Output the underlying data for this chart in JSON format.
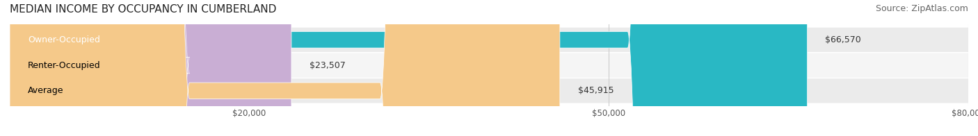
{
  "title": "MEDIAN INCOME BY OCCUPANCY IN CUMBERLAND",
  "source": "Source: ZipAtlas.com",
  "categories": [
    "Owner-Occupied",
    "Renter-Occupied",
    "Average"
  ],
  "values": [
    66570,
    23507,
    45915
  ],
  "labels": [
    "$66,570",
    "$23,507",
    "$45,915"
  ],
  "bar_colors": [
    "#29b8c4",
    "#c9aed4",
    "#f5c98a"
  ],
  "bar_edge_colors": [
    "#29b8c4",
    "#c9aed4",
    "#f5c98a"
  ],
  "bg_colors": [
    "#e8e8e8",
    "#f0f0f0",
    "#e8e8e8"
  ],
  "xlim": [
    0,
    80000
  ],
  "xticks": [
    20000,
    50000,
    80000
  ],
  "xticklabels": [
    "$20,000",
    "$50,000",
    "$80,000"
  ],
  "title_fontsize": 11,
  "source_fontsize": 9,
  "label_fontsize": 9,
  "cat_fontsize": 9
}
